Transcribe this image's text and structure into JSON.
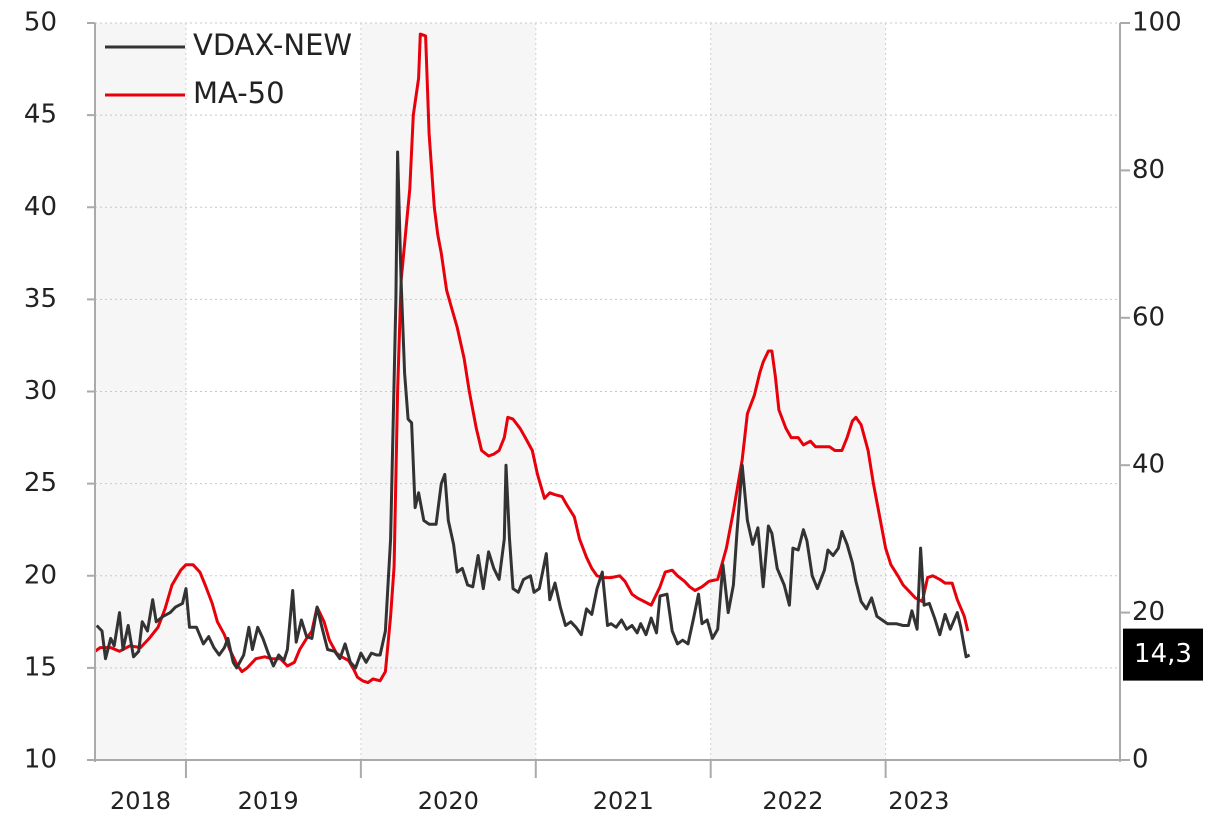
{
  "chart_data": {
    "type": "line",
    "xlim": [
      2018.48,
      2024.34
    ],
    "ylim": [
      10,
      50
    ],
    "yticks": [
      10,
      15,
      20,
      25,
      30,
      35,
      40,
      45,
      50
    ],
    "y2lim": [
      0,
      100
    ],
    "y2ticks": [
      0,
      20,
      40,
      60,
      80,
      100
    ],
    "xticks": [
      {
        "value": 2018.74,
        "label": "2018"
      },
      {
        "value": 2019.47,
        "label": "2019"
      },
      {
        "value": 2020.5,
        "label": "2020"
      },
      {
        "value": 2021.5,
        "label": "2021"
      },
      {
        "value": 2022.47,
        "label": "2022"
      },
      {
        "value": 2023.19,
        "label": "2023"
      }
    ],
    "year_starts": [
      2019,
      2020,
      2021,
      2022,
      2023
    ],
    "shaded_years": [
      [
        2018.48,
        2019
      ],
      [
        2020,
        2021
      ],
      [
        2022,
        2023
      ]
    ],
    "grid": true,
    "legend": "upper left",
    "annotation": {
      "value": 14.3,
      "label": "14,3",
      "axis": "y2"
    },
    "series": [
      {
        "name": "VDAX-NEW",
        "color": "#333333",
        "axis": "y",
        "x": [
          2018.49,
          2018.52,
          2018.54,
          2018.57,
          2018.59,
          2018.62,
          2018.64,
          2018.67,
          2018.7,
          2018.73,
          2018.75,
          2018.78,
          2018.81,
          2018.83,
          2018.87,
          2018.91,
          2018.94,
          2018.98,
          2019.0,
          2019.02,
          2019.06,
          2019.1,
          2019.13,
          2019.16,
          2019.19,
          2019.22,
          2019.24,
          2019.27,
          2019.29,
          2019.33,
          2019.36,
          2019.38,
          2019.41,
          2019.44,
          2019.47,
          2019.5,
          2019.53,
          2019.56,
          2019.58,
          2019.61,
          2019.63,
          2019.66,
          2019.69,
          2019.72,
          2019.75,
          2019.78,
          2019.81,
          2019.85,
          2019.88,
          2019.91,
          2019.94,
          2019.97,
          2020.0,
          2020.03,
          2020.06,
          2020.09,
          2020.11,
          2020.14,
          2020.17,
          2020.2,
          2020.21,
          2020.23,
          2020.25,
          2020.27,
          2020.29,
          2020.31,
          2020.33,
          2020.36,
          2020.39,
          2020.43,
          2020.46,
          2020.48,
          2020.5,
          2020.53,
          2020.55,
          2020.58,
          2020.61,
          2020.64,
          2020.67,
          2020.7,
          2020.73,
          2020.76,
          2020.79,
          2020.82,
          2020.83,
          2020.85,
          2020.87,
          2020.9,
          2020.93,
          2020.97,
          2020.99,
          2021.02,
          2021.06,
          2021.08,
          2021.11,
          2021.14,
          2021.17,
          2021.2,
          2021.23,
          2021.26,
          2021.29,
          2021.32,
          2021.35,
          2021.38,
          2021.41,
          2021.43,
          2021.46,
          2021.49,
          2021.52,
          2021.55,
          2021.58,
          2021.6,
          2021.63,
          2021.66,
          2021.69,
          2021.71,
          2021.75,
          2021.78,
          2021.81,
          2021.84,
          2021.87,
          2021.9,
          2021.93,
          2021.95,
          2021.98,
          2022.01,
          2022.04,
          2022.07,
          2022.1,
          2022.13,
          2022.15,
          2022.18,
          2022.21,
          2022.24,
          2022.27,
          2022.3,
          2022.33,
          2022.35,
          2022.38,
          2022.42,
          2022.45,
          2022.47,
          2022.5,
          2022.53,
          2022.55,
          2022.58,
          2022.61,
          2022.65,
          2022.67,
          2022.7,
          2022.73,
          2022.75,
          2022.78,
          2022.81,
          2022.83,
          2022.86,
          2022.89,
          2022.92,
          2022.95,
          2022.98,
          2023.01,
          2023.03,
          2023.06,
          2023.1,
          2023.13,
          2023.15,
          2023.18,
          2023.2,
          2023.22,
          2023.25,
          2023.28,
          2023.31,
          2023.34,
          2023.37,
          2023.41,
          2023.43,
          2023.46,
          2023.48
        ],
        "values": [
          17.3,
          17.0,
          15.5,
          16.6,
          16.2,
          18.0,
          16.0,
          17.3,
          15.6,
          15.9,
          17.5,
          17.0,
          18.7,
          17.5,
          17.8,
          18.0,
          18.3,
          18.5,
          19.3,
          17.2,
          17.2,
          16.3,
          16.7,
          16.1,
          15.7,
          16.1,
          16.6,
          15.3,
          15.0,
          15.7,
          17.2,
          16.0,
          17.2,
          16.6,
          15.8,
          15.1,
          15.7,
          15.4,
          16.0,
          19.2,
          16.4,
          17.6,
          16.7,
          16.6,
          18.3,
          17.1,
          16.0,
          15.9,
          15.5,
          16.3,
          15.3,
          15.0,
          15.8,
          15.3,
          15.8,
          15.7,
          15.7,
          17.0,
          22.0,
          35.0,
          43.0,
          36.0,
          31.0,
          28.5,
          28.3,
          23.7,
          24.5,
          23.0,
          22.8,
          22.8,
          25.0,
          25.5,
          23.0,
          21.7,
          20.2,
          20.4,
          19.5,
          19.4,
          21.1,
          19.3,
          21.3,
          20.4,
          19.8,
          22.0,
          26.0,
          22.0,
          19.3,
          19.1,
          19.8,
          20.0,
          19.1,
          19.3,
          21.2,
          18.7,
          19.6,
          18.3,
          17.3,
          17.5,
          17.2,
          16.8,
          18.2,
          17.9,
          19.3,
          20.2,
          17.3,
          17.4,
          17.2,
          17.6,
          17.1,
          17.3,
          16.9,
          17.4,
          16.8,
          17.7,
          16.9,
          18.9,
          19.0,
          17.0,
          16.3,
          16.5,
          16.3,
          17.6,
          19.0,
          17.4,
          17.6,
          16.6,
          17.1,
          20.6,
          18.0,
          19.5,
          22.3,
          26.0,
          23.0,
          21.7,
          22.6,
          19.4,
          22.7,
          22.3,
          20.4,
          19.5,
          18.4,
          21.5,
          21.4,
          22.5,
          21.9,
          20.0,
          19.3,
          20.3,
          21.4,
          21.1,
          21.5,
          22.4,
          21.7,
          20.7,
          19.7,
          18.6,
          18.2,
          18.8,
          17.8,
          17.6,
          17.4,
          17.4,
          17.4,
          17.3,
          17.3,
          18.1,
          17.1,
          21.5,
          18.4,
          18.5,
          17.7,
          16.8,
          17.9,
          17.1,
          18.0,
          17.2,
          15.6,
          15.7
        ]
      },
      {
        "name": "MA-50",
        "color": "#e8000b",
        "axis": "y2",
        "x": [
          2018.48,
          2018.51,
          2018.57,
          2018.62,
          2018.68,
          2018.74,
          2018.79,
          2018.84,
          2018.88,
          2018.92,
          2018.97,
          2019.0,
          2019.04,
          2019.08,
          2019.11,
          2019.15,
          2019.18,
          2019.22,
          2019.25,
          2019.29,
          2019.32,
          2019.35,
          2019.4,
          2019.45,
          2019.49,
          2019.54,
          2019.58,
          2019.62,
          2019.65,
          2019.69,
          2019.72,
          2019.75,
          2019.79,
          2019.82,
          2019.86,
          2019.89,
          2019.93,
          2019.96,
          2019.98,
          2020.01,
          2020.04,
          2020.07,
          2020.11,
          2020.14,
          2020.17,
          2020.19,
          2020.21,
          2020.23,
          2020.26,
          2020.28,
          2020.3,
          2020.33,
          2020.34,
          2020.37,
          2020.39,
          2020.42,
          2020.44,
          2020.46,
          2020.49,
          2020.52,
          2020.55,
          2020.59,
          2020.62,
          2020.66,
          2020.69,
          2020.73,
          2020.76,
          2020.79,
          2020.82,
          2020.84,
          2020.87,
          2020.91,
          2020.94,
          2020.98,
          2021.01,
          2021.05,
          2021.08,
          2021.11,
          2021.15,
          2021.18,
          2021.22,
          2021.25,
          2021.29,
          2021.32,
          2021.35,
          2021.39,
          2021.43,
          2021.48,
          2021.51,
          2021.55,
          2021.58,
          2021.62,
          2021.66,
          2021.71,
          2021.74,
          2021.78,
          2021.81,
          2021.85,
          2021.88,
          2021.91,
          2021.95,
          2021.99,
          2022.04,
          2022.09,
          2022.13,
          2022.18,
          2022.21,
          2022.25,
          2022.28,
          2022.3,
          2022.33,
          2022.35,
          2022.37,
          2022.39,
          2022.43,
          2022.46,
          2022.5,
          2022.53,
          2022.57,
          2022.6,
          2022.63,
          2022.68,
          2022.71,
          2022.75,
          2022.78,
          2022.81,
          2022.83,
          2022.86,
          2022.9,
          2022.93,
          2022.97,
          2023.0,
          2023.03,
          2023.07,
          2023.1,
          2023.14,
          2023.17,
          2023.21,
          2023.24,
          2023.27,
          2023.31,
          2023.34,
          2023.38,
          2023.41,
          2023.45,
          2023.47
        ],
        "values": [
          14.75,
          15.25,
          15.25,
          14.75,
          15.5,
          15.25,
          16.5,
          18,
          20.5,
          23.75,
          25.75,
          26.5,
          26.5,
          25.5,
          23.75,
          21.25,
          18.75,
          17,
          15,
          13,
          12,
          12.5,
          13.75,
          14,
          13.75,
          13.75,
          12.75,
          13.25,
          15,
          16.5,
          17.5,
          20.75,
          18.75,
          16.25,
          14.5,
          14,
          13.5,
          12.25,
          11.25,
          10.75,
          10.5,
          11,
          10.75,
          12,
          19.5,
          26.25,
          50,
          65,
          72.5,
          77.5,
          87.5,
          92.5,
          98.5,
          98.25,
          85,
          75,
          71.25,
          68.75,
          63.75,
          61.25,
          58.75,
          54.5,
          50,
          45,
          42,
          41.25,
          41.5,
          42,
          43.75,
          46.5,
          46.25,
          45,
          43.75,
          42,
          38.75,
          35.5,
          36.25,
          36,
          35.75,
          34.5,
          33,
          30,
          27.5,
          26,
          25,
          24.75,
          24.75,
          25,
          24.25,
          22.5,
          22,
          21.5,
          21,
          23.5,
          25.5,
          25.75,
          25,
          24.25,
          23.5,
          23,
          23.5,
          24.25,
          24.5,
          28.75,
          33.75,
          40.75,
          47,
          49.5,
          52.5,
          54,
          55.5,
          55.5,
          52,
          47.5,
          45,
          43.75,
          43.75,
          42.75,
          43.25,
          42.5,
          42.5,
          42.5,
          42,
          42,
          43.75,
          46,
          46.5,
          45.5,
          42,
          37.5,
          32.5,
          28.75,
          26.5,
          25,
          23.75,
          22.75,
          22,
          21.5,
          24.75,
          25,
          24.5,
          24,
          24,
          21.75,
          19.5,
          17.5
        ]
      }
    ]
  }
}
